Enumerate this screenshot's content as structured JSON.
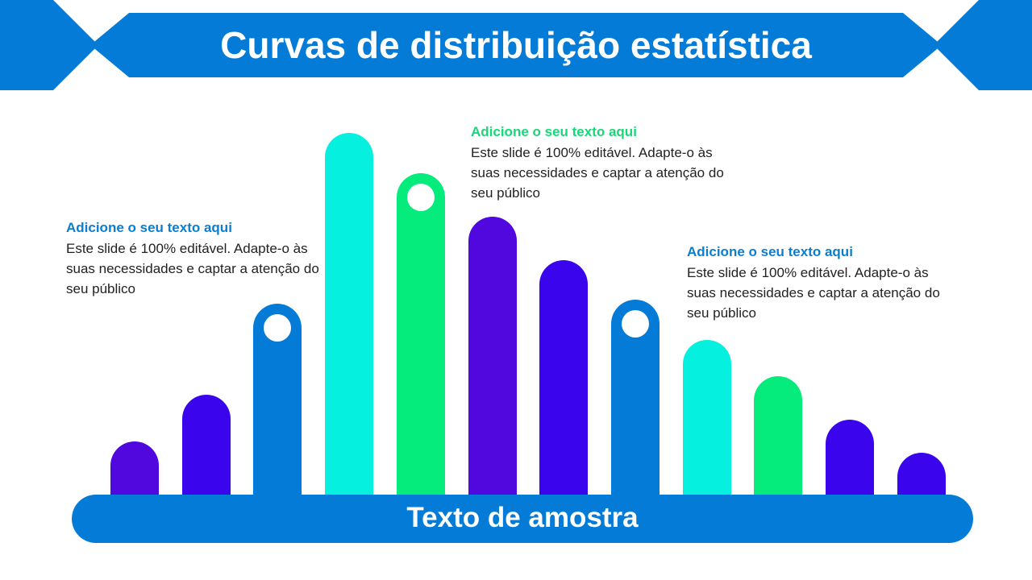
{
  "title": "Curvas de distribuição estatística",
  "base_label": "Texto de amostra",
  "colors": {
    "banner": "#047bd6",
    "heading_blue": "#0a7fd0",
    "heading_green": "#17d878",
    "body_text": "#222222"
  },
  "bars": [
    {
      "level": 0.15,
      "color": "#5008de"
    },
    {
      "level": 0.28,
      "color": "#3a05ec"
    },
    {
      "level": 0.53,
      "color": "#047bd6",
      "marker": true
    },
    {
      "level": 1.0,
      "color": "#05f0de"
    },
    {
      "level": 0.89,
      "color": "#05ec7c",
      "marker": true
    },
    {
      "level": 0.77,
      "color": "#5008de"
    },
    {
      "level": 0.65,
      "color": "#3a05ec"
    },
    {
      "level": 0.54,
      "color": "#047bd6",
      "marker": true
    },
    {
      "level": 0.43,
      "color": "#05f0de"
    },
    {
      "level": 0.33,
      "color": "#05ec7c"
    },
    {
      "level": 0.21,
      "color": "#3a05ec"
    },
    {
      "level": 0.12,
      "color": "#3a05ec"
    }
  ],
  "callouts": {
    "left": {
      "heading": "Adicione o seu texto aqui",
      "body": "Este slide é 100% editável. Adapte-o às suas necessidades e captar a atenção do seu público"
    },
    "center": {
      "heading": "Adicione o seu texto aqui",
      "body": "Este slide é 100% editável. Adapte-o às suas necessidades e captar a atenção do seu público"
    },
    "right": {
      "heading": "Adicione o seu texto aqui",
      "body": "Este slide é 100% editável. Adapte-o às suas necessidades e captar a atenção do seu público"
    }
  }
}
